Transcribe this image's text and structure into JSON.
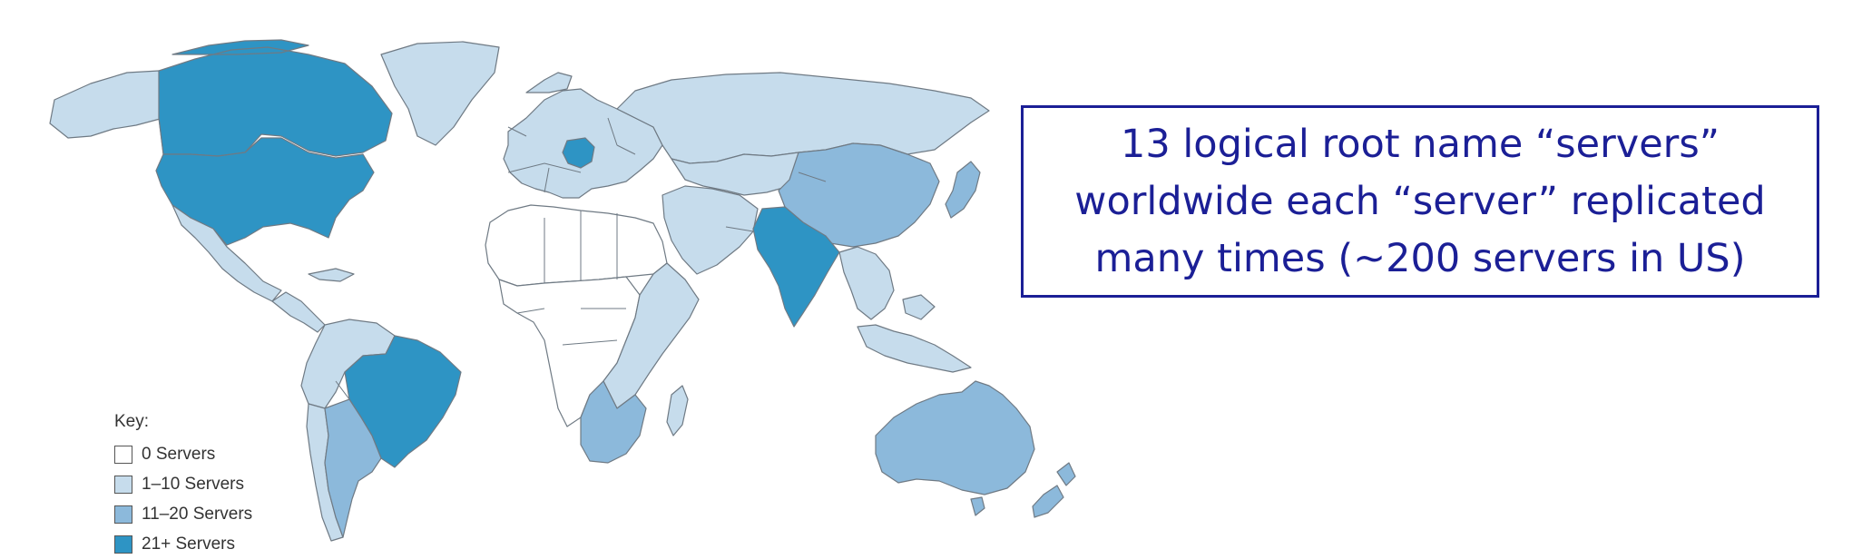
{
  "info_box": {
    "text": "13 logical root name “servers”\nworldwide each “server” replicated\nmany times (~200 servers in US)"
  },
  "legend": {
    "title": "Key:",
    "items": [
      {
        "label": "0 Servers",
        "color": "#ffffff"
      },
      {
        "label": "1–10 Servers",
        "color": "#c6dcec"
      },
      {
        "label": "11–20 Servers",
        "color": "#8cb9db"
      },
      {
        "label": "21+ Servers",
        "color": "#2e94c4"
      }
    ]
  },
  "map_regions": [
    {
      "name": "alaska",
      "level": 1
    },
    {
      "name": "canada",
      "level": 3
    },
    {
      "name": "usa",
      "level": 3
    },
    {
      "name": "greenland",
      "level": 1
    },
    {
      "name": "mexico",
      "level": 1
    },
    {
      "name": "central-america",
      "level": 1
    },
    {
      "name": "northern-south-america",
      "level": 1
    },
    {
      "name": "brazil",
      "level": 3
    },
    {
      "name": "argentina",
      "level": 2
    },
    {
      "name": "chile",
      "level": 1
    },
    {
      "name": "europe",
      "level": 1
    },
    {
      "name": "germany",
      "level": 3
    },
    {
      "name": "russia",
      "level": 1
    },
    {
      "name": "north-africa",
      "level": 0
    },
    {
      "name": "central-africa",
      "level": 0
    },
    {
      "name": "east-africa",
      "level": 1
    },
    {
      "name": "south-africa",
      "level": 2
    },
    {
      "name": "middle-east",
      "level": 1
    },
    {
      "name": "central-asia",
      "level": 1
    },
    {
      "name": "china",
      "level": 2
    },
    {
      "name": "india",
      "level": 3
    },
    {
      "name": "southeast-asia",
      "level": 1
    },
    {
      "name": "japan",
      "level": 2
    },
    {
      "name": "indonesia",
      "level": 1
    },
    {
      "name": "australia",
      "level": 2
    },
    {
      "name": "new-zealand",
      "level": 2
    },
    {
      "name": "madagascar",
      "level": 1
    }
  ]
}
